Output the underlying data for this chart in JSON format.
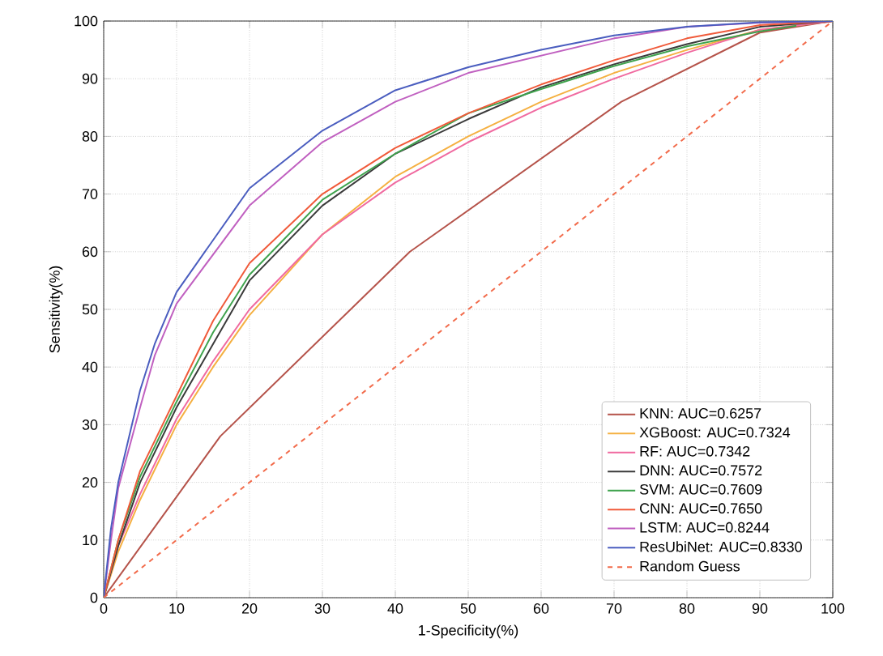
{
  "chart_data": {
    "type": "line",
    "xlabel": "1-Specificity(%)",
    "ylabel": "Sensitivity(%)",
    "xlim": [
      0,
      100
    ],
    "ylim": [
      0,
      100
    ],
    "xticks": [
      0,
      10,
      20,
      30,
      40,
      50,
      60,
      70,
      80,
      90,
      100
    ],
    "yticks": [
      0,
      10,
      20,
      30,
      40,
      50,
      60,
      70,
      80,
      90,
      100
    ],
    "grid": true,
    "legend": "bottom right",
    "line_style": "solid",
    "series": [
      {
        "name": "KNN: AUC=0.6257",
        "color": "#b5534a",
        "x": [
          0,
          16,
          42,
          71,
          90,
          100
        ],
        "values": [
          0,
          28,
          60,
          86,
          98,
          100
        ]
      },
      {
        "name": "XGBoost: AUC=0.7324",
        "color": "#f5b041",
        "x": [
          0,
          2,
          5,
          10,
          15,
          20,
          30,
          40,
          50,
          60,
          70,
          80,
          90,
          100
        ],
        "values": [
          0,
          8,
          17,
          30,
          40,
          49,
          63,
          73,
          80,
          86,
          91,
          95,
          98.5,
          100
        ]
      },
      {
        "name": "RF: AUC=0.7342",
        "color": "#f06aa0",
        "x": [
          0,
          2,
          5,
          10,
          15,
          20,
          30,
          40,
          50,
          60,
          70,
          80,
          90,
          100
        ],
        "values": [
          0,
          9,
          18,
          31,
          41,
          50,
          63,
          72,
          79,
          85,
          90,
          94.5,
          98.5,
          100
        ]
      },
      {
        "name": "DNN: AUC=0.7572",
        "color": "#3a3a3a",
        "x": [
          0,
          2,
          5,
          10,
          15,
          20,
          30,
          40,
          50,
          60,
          70,
          80,
          90,
          100
        ],
        "values": [
          0,
          9,
          20,
          33,
          44,
          55,
          68,
          77,
          83,
          88.5,
          92.5,
          96,
          99,
          100
        ]
      },
      {
        "name": "SVM: AUC=0.7609",
        "color": "#3fa34d",
        "x": [
          0,
          2,
          5,
          10,
          15,
          20,
          30,
          40,
          50,
          60,
          70,
          80,
          90,
          95
        ],
        "values": [
          0,
          10,
          21,
          34,
          46,
          56,
          69,
          77,
          84,
          88.2,
          92.2,
          95.6,
          98.2,
          99.2
        ]
      },
      {
        "name": "CNN: AUC=0.7650",
        "color": "#f05a3a",
        "x": [
          0,
          2,
          5,
          10,
          15,
          20,
          30,
          40,
          50,
          60,
          70,
          80,
          90,
          100
        ],
        "values": [
          0,
          10,
          22,
          35,
          48,
          58,
          70,
          78,
          84,
          89,
          93.2,
          97,
          99.3,
          100
        ]
      },
      {
        "name": "LSTM: AUC=0.8244",
        "color": "#c060c0",
        "x": [
          0,
          1,
          2,
          5,
          7,
          10,
          20,
          30,
          40,
          50,
          60,
          70,
          80,
          90,
          100
        ],
        "values": [
          0,
          10,
          19,
          33,
          42,
          51,
          68,
          79,
          86,
          91,
          94,
          97,
          99,
          99.7,
          100
        ]
      },
      {
        "name": "ResUbiNet: AUC=0.8330",
        "color": "#4a5dbf",
        "x": [
          0,
          1,
          2,
          5,
          7,
          10,
          20,
          30,
          40,
          50,
          60,
          70,
          80,
          90,
          100
        ],
        "values": [
          0,
          12,
          20,
          36,
          44,
          53,
          71,
          81,
          88,
          92,
          95,
          97.5,
          99,
          99.8,
          100
        ]
      },
      {
        "name": "Random Guess",
        "color": "#f26b4b",
        "line_style": "dashed",
        "x": [
          0,
          100
        ],
        "values": [
          0,
          100
        ]
      }
    ]
  }
}
